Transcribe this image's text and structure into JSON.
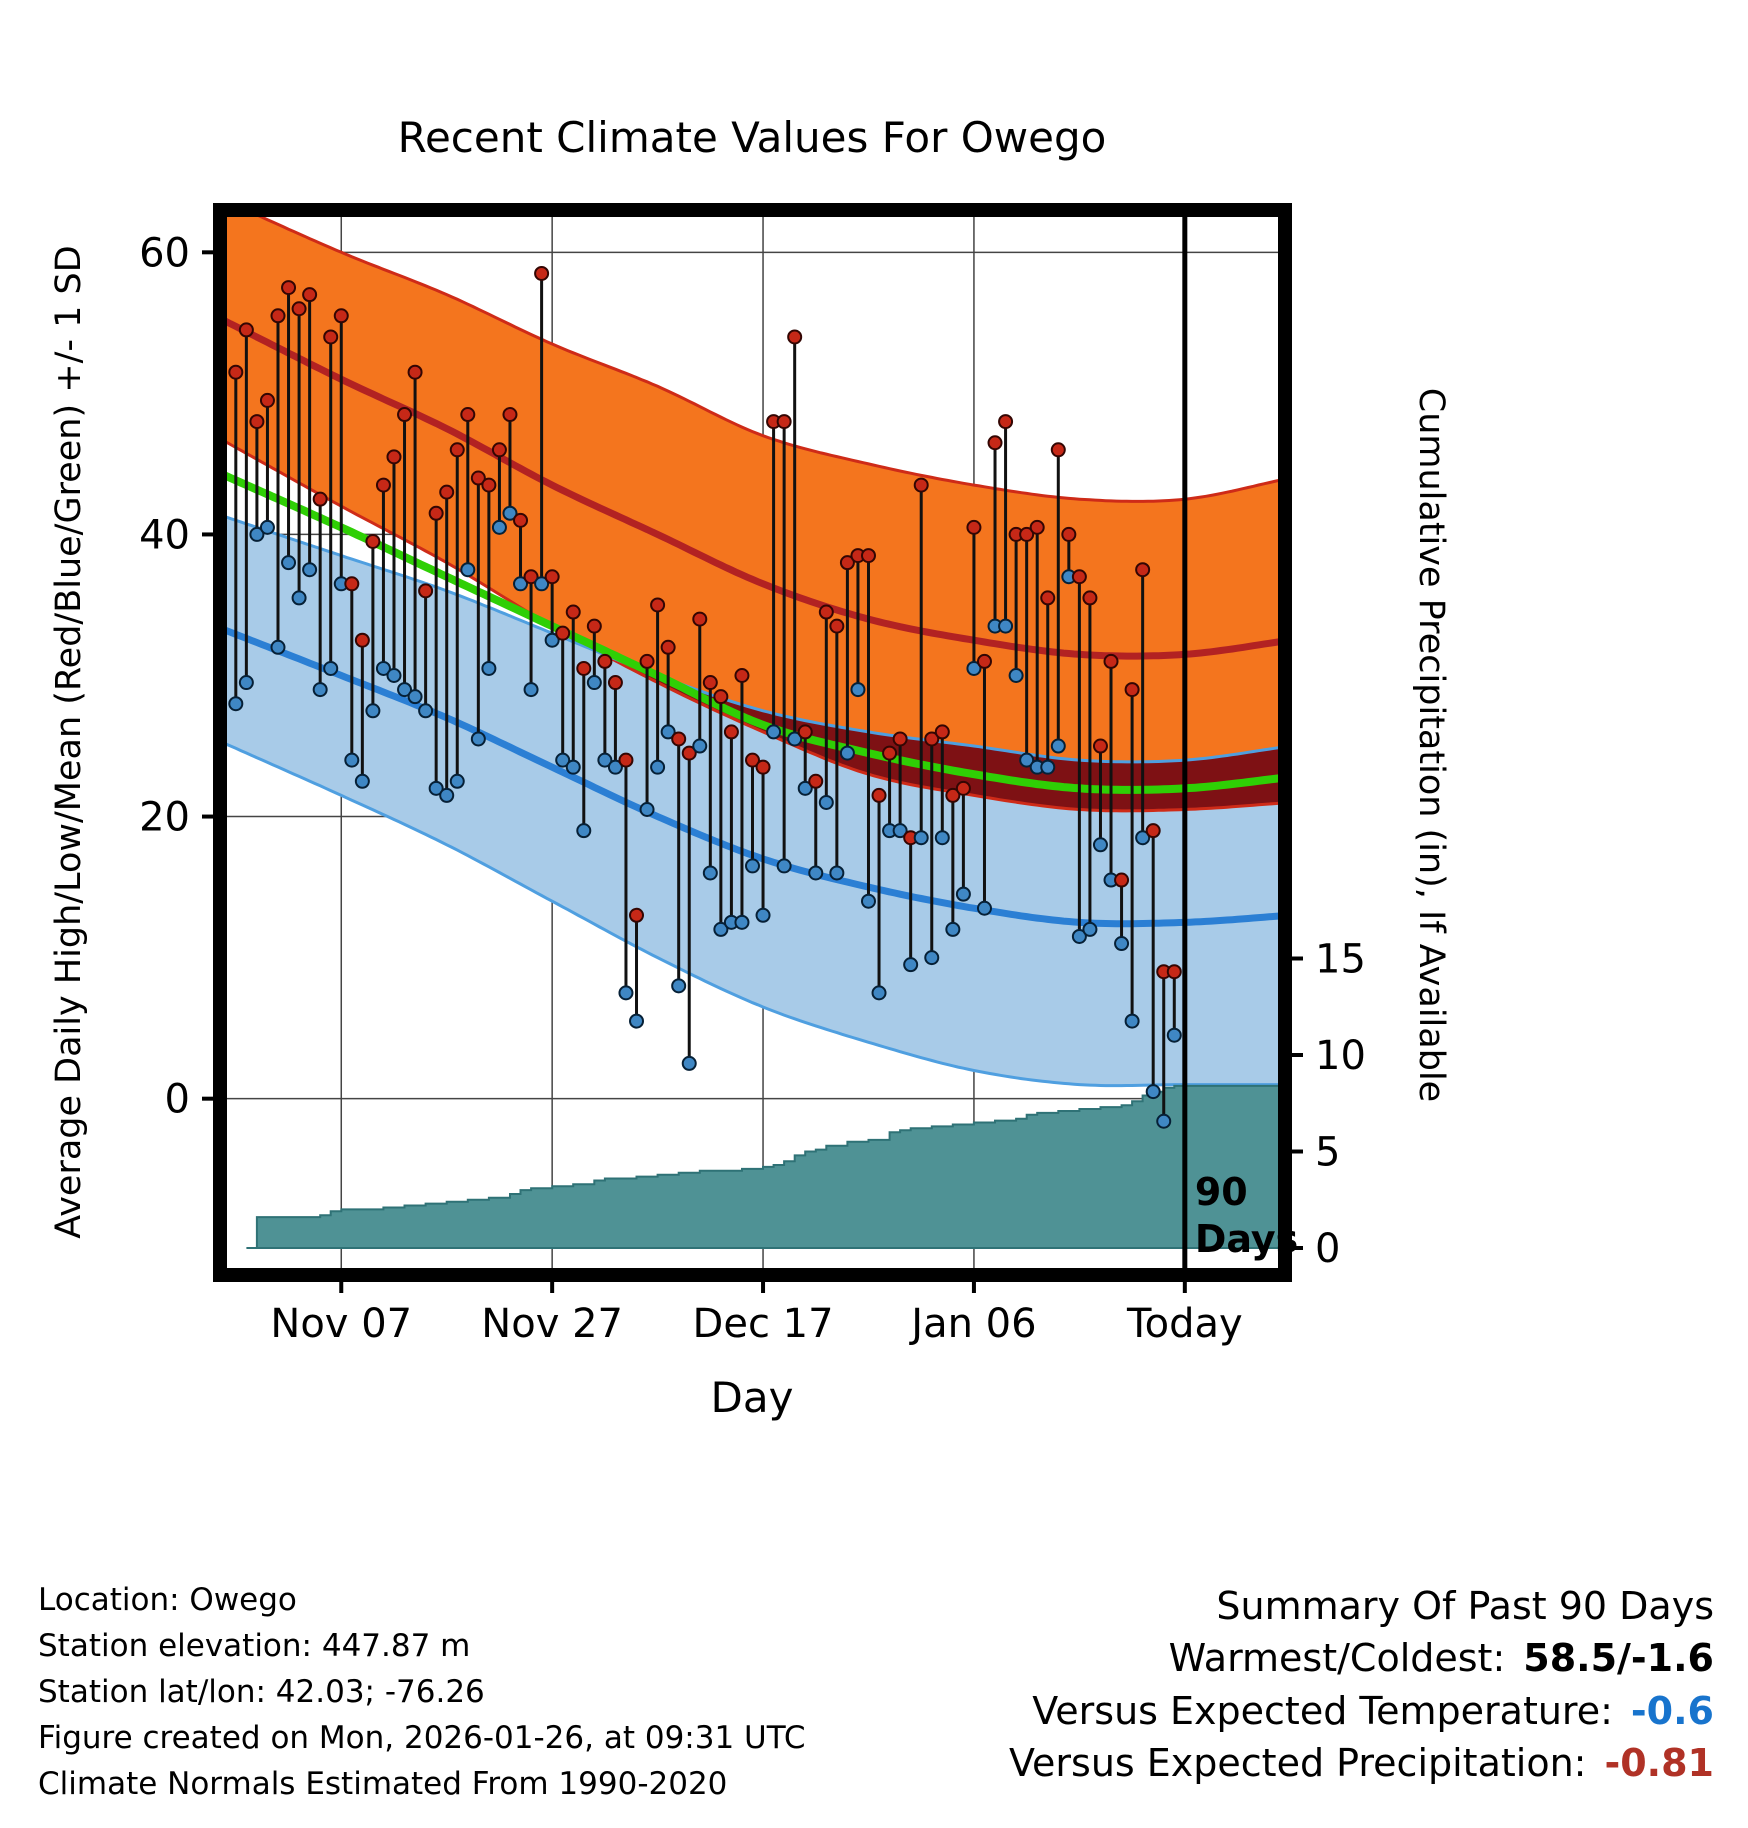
{
  "chart_data": {
    "type": "line",
    "title": "Recent Climate Values For Owego",
    "xlabel": "Day",
    "ylabel_left": "Average Daily High/Low/Mean (Red/Blue/Green) +/- 1 SD",
    "ylabel_right": "Cumulative Precipitation (in), If Available",
    "x_domain_days": [
      -1.5,
      99.5
    ],
    "y_left_domain": [
      -12.5,
      63
    ],
    "y_left_ticks": [
      0,
      20,
      40,
      60
    ],
    "y_right_ticks": [
      0,
      5,
      10,
      15
    ],
    "x_ticks": [
      {
        "day": 10,
        "label": "Nov 07"
      },
      {
        "day": 30,
        "label": "Nov 27"
      },
      {
        "day": 50,
        "label": "Dec 17"
      },
      {
        "day": 70,
        "label": "Jan 06"
      },
      {
        "day": 90,
        "label": "Today"
      }
    ],
    "normals": {
      "days": [
        -2,
        10,
        20,
        30,
        40,
        50,
        60,
        70,
        80,
        90,
        100
      ],
      "high_mean": [
        55.5,
        51,
        47.5,
        43.5,
        40,
        36.5,
        34,
        32.5,
        31.5,
        31.5,
        32.5
      ],
      "high_sd": [
        8.5,
        9,
        9.5,
        10,
        10.5,
        10.5,
        11,
        11,
        11,
        11,
        11.5
      ],
      "low_mean": [
        33.5,
        30,
        27,
        23.5,
        20,
        17,
        15,
        13.5,
        12.5,
        12.5,
        13
      ],
      "low_sd": [
        8,
        8.5,
        9,
        9.5,
        10,
        10.5,
        11,
        11.5,
        11.5,
        11.5,
        12
      ],
      "mean": [
        44.5,
        40.5,
        37,
        33.5,
        30,
        26.5,
        24.5,
        23,
        22,
        22,
        22.8
      ]
    },
    "daily_observations": {
      "start_day": 0,
      "high": [
        51.5,
        54.5,
        48,
        49.5,
        55.5,
        57.5,
        56,
        57,
        42.5,
        54,
        55.5,
        36.5,
        32.5,
        39.5,
        43.5,
        45.5,
        48.5,
        51.5,
        36,
        41.5,
        43,
        46,
        48.5,
        44,
        43.5,
        46,
        48.5,
        41,
        37,
        58.5,
        37,
        33,
        34.5,
        30.5,
        33.5,
        31,
        29.5,
        24,
        13,
        31,
        35,
        32,
        25.5,
        24.5,
        34,
        29.5,
        28.5,
        26,
        30,
        24,
        23.5,
        48,
        48,
        54,
        26,
        22.5,
        34.5,
        33.5,
        38,
        38.5,
        38.5,
        21.5,
        24.5,
        25.5,
        18.5,
        43.5,
        25.5,
        26,
        21.5,
        22,
        40.5,
        31,
        46.5,
        48,
        40,
        40,
        40.5,
        35.5,
        46,
        40,
        37,
        35.5,
        25,
        31,
        15.5,
        29,
        37.5,
        19,
        9,
        9
      ],
      "low": [
        28,
        29.5,
        40,
        40.5,
        32,
        38,
        35.5,
        37.5,
        29,
        30.5,
        36.5,
        24,
        22.5,
        27.5,
        30.5,
        30,
        29,
        28.5,
        27.5,
        22,
        21.5,
        22.5,
        37.5,
        25.5,
        30.5,
        40.5,
        41.5,
        36.5,
        29,
        36.5,
        32.5,
        24,
        23.5,
        19,
        29.5,
        24,
        23.5,
        7.5,
        5.5,
        20.5,
        23.5,
        26,
        8,
        2.5,
        25,
        16,
        12,
        12.5,
        12.5,
        16.5,
        13,
        26,
        16.5,
        25.5,
        22,
        16,
        21,
        16,
        24.5,
        29,
        14,
        7.5,
        19,
        19,
        9.5,
        18.5,
        10,
        18.5,
        12,
        14.5,
        30.5,
        13.5,
        33.5,
        33.5,
        30,
        24,
        23.5,
        23.5,
        25,
        37,
        11.5,
        12,
        18,
        15.5,
        11,
        5.5,
        18.5,
        0.5,
        -1.6,
        4.5
      ]
    },
    "cumulative_precip_in": [
      [
        1,
        0
      ],
      [
        2,
        1.6
      ],
      [
        8,
        1.7
      ],
      [
        9,
        1.9
      ],
      [
        10,
        2.0
      ],
      [
        14,
        2.1
      ],
      [
        16,
        2.2
      ],
      [
        18,
        2.3
      ],
      [
        20,
        2.4
      ],
      [
        22,
        2.5
      ],
      [
        24,
        2.6
      ],
      [
        26,
        2.8
      ],
      [
        27,
        3.0
      ],
      [
        28,
        3.1
      ],
      [
        30,
        3.2
      ],
      [
        32,
        3.3
      ],
      [
        34,
        3.5
      ],
      [
        35,
        3.6
      ],
      [
        38,
        3.7
      ],
      [
        40,
        3.8
      ],
      [
        42,
        3.9
      ],
      [
        44,
        4.0
      ],
      [
        48,
        4.1
      ],
      [
        50,
        4.2
      ],
      [
        51,
        4.3
      ],
      [
        52,
        4.5
      ],
      [
        53,
        4.8
      ],
      [
        54,
        5.0
      ],
      [
        55,
        5.1
      ],
      [
        56,
        5.3
      ],
      [
        58,
        5.5
      ],
      [
        60,
        5.6
      ],
      [
        62,
        6.0
      ],
      [
        63,
        6.1
      ],
      [
        64,
        6.2
      ],
      [
        66,
        6.3
      ],
      [
        68,
        6.4
      ],
      [
        70,
        6.5
      ],
      [
        72,
        6.6
      ],
      [
        74,
        6.7
      ],
      [
        75,
        6.9
      ],
      [
        76,
        7.0
      ],
      [
        78,
        7.1
      ],
      [
        80,
        7.2
      ],
      [
        82,
        7.3
      ],
      [
        84,
        7.4
      ],
      [
        85,
        7.6
      ],
      [
        86,
        7.9
      ],
      [
        87,
        8.1
      ],
      [
        88,
        8.3
      ],
      [
        89,
        8.4
      ],
      [
        99.5,
        8.4
      ]
    ],
    "ninety_day_marker": {
      "day": 90,
      "label_line1": "90",
      "label_line2": "Days"
    },
    "palette": {
      "high_band": "#F4751E",
      "high_band_edge": "#CE2B18",
      "high_mean_line": "#B22222",
      "overlap_band": "#7E1114",
      "low_band": "#A8CBE8",
      "low_band_edge": "#4F9FE0",
      "low_mean_line": "#2B7FD4",
      "mean_line": "#2FCF05",
      "precip_fill": "#4F9295",
      "precip_edge": "#2F7276",
      "high_dot": "#C62817",
      "low_dot": "#3F87C4",
      "stem": "#111111",
      "grid": "#444444"
    }
  },
  "footer": {
    "lines": [
      "Location: Owego",
      "Station elevation: 447.87 m",
      "Station lat/lon: 42.03; -76.26",
      "Figure created on Mon, 2026-01-26, at 09:31 UTC",
      "Climate Normals Estimated From 1990-2020"
    ]
  },
  "summary": {
    "heading": "Summary Of Past 90 Days",
    "rows": [
      {
        "label": "Warmest/Coldest:",
        "value": "58.5/-1.6",
        "color": "#000000"
      },
      {
        "label": "Versus Expected Temperature:",
        "value": "-0.6",
        "color": "#1874CD"
      },
      {
        "label": "Versus Expected Precipitation:",
        "value": "-0.81",
        "color": "#B03226"
      }
    ]
  }
}
